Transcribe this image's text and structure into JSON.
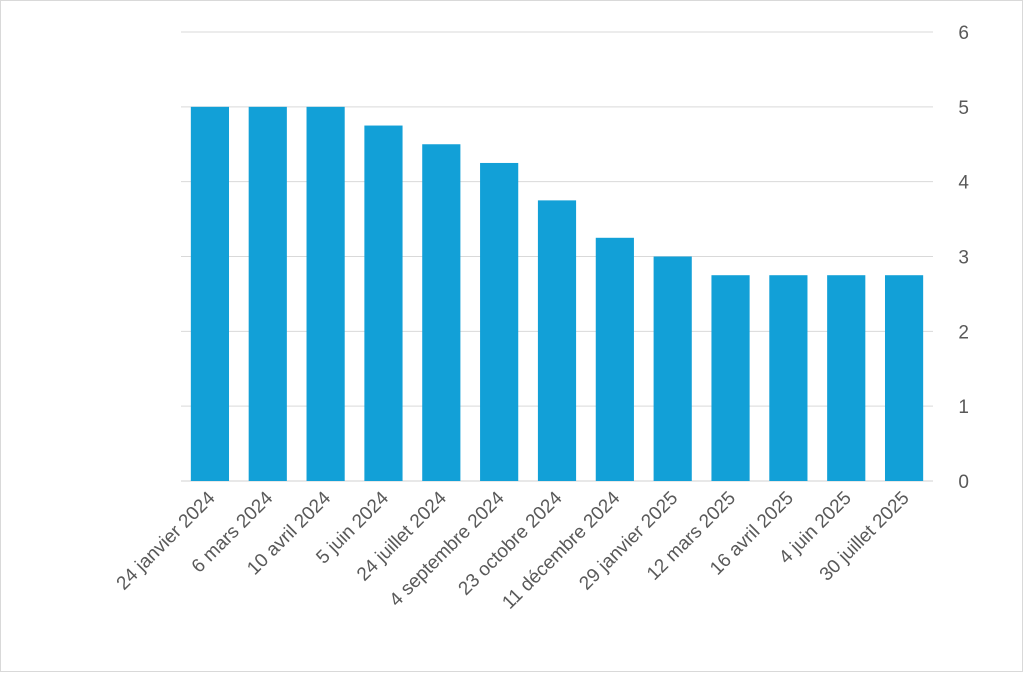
{
  "chart_data": {
    "type": "bar",
    "categories": [
      "24 janvier 2024",
      "6 mars 2024",
      "10 avril 2024",
      "5 juin 2024",
      "24 juillet 2024",
      "4 septembre 2024",
      "23 octobre 2024",
      "11 décembre 2024",
      "29 janvier 2025",
      "12 mars 2025",
      "16 avril 2025",
      "4 juin 2025",
      "30 juillet 2025"
    ],
    "values": [
      5,
      5,
      5,
      4.75,
      4.5,
      4.25,
      3.75,
      3.25,
      3,
      2.75,
      2.75,
      2.75,
      2.75
    ],
    "ylim": [
      0,
      6
    ],
    "yticks": [
      "0",
      "1",
      "2",
      "3",
      "4",
      "5",
      "6"
    ],
    "y_axis_side": "right",
    "grid": true,
    "bar_color": "#12a0d7",
    "grid_color": "#d9d9d9",
    "text_color": "#595959"
  }
}
